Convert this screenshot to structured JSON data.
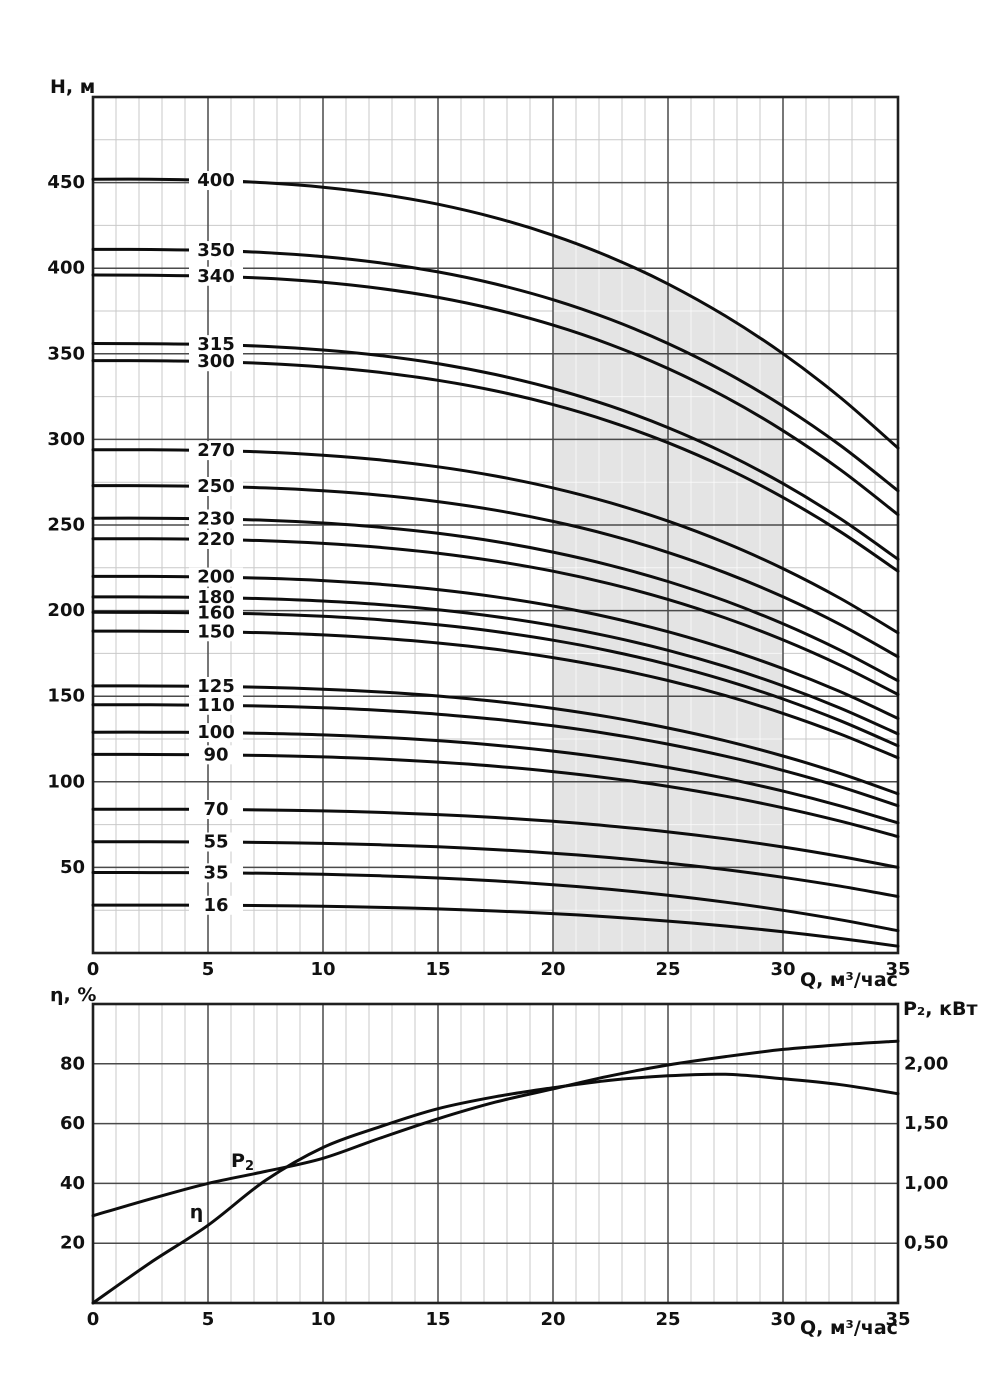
{
  "figure": {
    "background": "#ffffff",
    "description": "Submersible pump performance curves: head H vs flow Q for 21 head ratings (top), efficiency and shaft power vs flow (bottom)"
  },
  "style": {
    "curve_color": "#0d0d0d",
    "major_grid_color": "#4a4a4a",
    "minor_grid_color": "#c9c9c9",
    "border_color": "#1f1f1f",
    "shading_color": "#e4e4e4",
    "text_color": "#111111"
  },
  "chart_data": [
    {
      "type": "line",
      "id": "head-flow-curves",
      "ylabel": "Н, м",
      "xlabel": "Q, м³/час",
      "xlim": [
        0,
        35
      ],
      "ylim": [
        0,
        500
      ],
      "x_ticks": [
        0,
        5,
        10,
        15,
        20,
        25,
        30,
        35
      ],
      "y_ticks": [
        50,
        100,
        150,
        200,
        250,
        300,
        350,
        400,
        450
      ],
      "grid": "major dark every 5 (x) / 50 (y); minor light every 1 (x) / 25 (y)",
      "legend_position": "inline numeric labels on curves near Q = 5",
      "label_band_q": 5.3,
      "shaded_region": {
        "q_start": 20,
        "q_end": 30,
        "note": "recommended duty range, bounded above by the top curve, below by H = 0"
      },
      "curve_shape": {
        "model": "H(Q) = H0 - (H0 - H35) * (Q/35)^2.8"
      },
      "series": [
        {
          "label": "400",
          "H0": 452,
          "H35": 295
        },
        {
          "label": "350",
          "H0": 411,
          "H35": 270
        },
        {
          "label": "340",
          "H0": 396,
          "H35": 256
        },
        {
          "label": "315",
          "H0": 356,
          "H35": 230
        },
        {
          "label": "300",
          "H0": 346,
          "H35": 223
        },
        {
          "label": "270",
          "H0": 294,
          "H35": 187
        },
        {
          "label": "250",
          "H0": 273,
          "H35": 173
        },
        {
          "label": "230",
          "H0": 254,
          "H35": 159
        },
        {
          "label": "220",
          "H0": 242,
          "H35": 151
        },
        {
          "label": "200",
          "H0": 220,
          "H35": 137
        },
        {
          "label": "180",
          "H0": 208,
          "H35": 128
        },
        {
          "label": "160",
          "H0": 199,
          "H35": 121
        },
        {
          "label": "150",
          "H0": 188,
          "H35": 114
        },
        {
          "label": "125",
          "H0": 156,
          "H35": 93
        },
        {
          "label": "110",
          "H0": 145,
          "H35": 86
        },
        {
          "label": "100",
          "H0": 129,
          "H35": 76
        },
        {
          "label": "90",
          "H0": 116,
          "H35": 68
        },
        {
          "label": "70",
          "H0": 84,
          "H35": 50
        },
        {
          "label": "55",
          "H0": 65,
          "H35": 33
        },
        {
          "label": "35",
          "H0": 47,
          "H35": 13
        },
        {
          "label": "16",
          "H0": 28,
          "H35": 4
        }
      ]
    },
    {
      "type": "line",
      "id": "efficiency-and-power",
      "ylabel_left": "η, %",
      "ylabel_right": "P₂, кВт",
      "xlabel": "Q, м³/час",
      "xlim": [
        0,
        35
      ],
      "ylim_left": [
        0,
        100
      ],
      "ylim_right": [
        0,
        2.5
      ],
      "x_ticks": [
        0,
        5,
        10,
        15,
        20,
        25,
        30,
        35
      ],
      "y_ticks_left": [
        20,
        40,
        60,
        80
      ],
      "y_ticks_right": [
        {
          "value": 0.5,
          "label": "0,50"
        },
        {
          "value": 1.0,
          "label": "1,00"
        },
        {
          "value": 1.5,
          "label": "1,50"
        },
        {
          "value": 2.0,
          "label": "2,00"
        }
      ],
      "grid": "major dark every 5 (x) / 20 (left y); minor light every 1 (x)",
      "series": [
        {
          "name": "η",
          "axis": "left",
          "units": "%",
          "x": [
            0,
            2.5,
            5,
            7.5,
            10,
            12.5,
            15,
            17.5,
            20,
            22.5,
            25,
            27.5,
            30,
            32.5,
            35
          ],
          "y": [
            0,
            13.5,
            26,
            41,
            52,
            59,
            65,
            69,
            72,
            74.5,
            76,
            76.5,
            75,
            73,
            70
          ],
          "label_pos": {
            "q": 4.5,
            "value_left_scale": 30.5
          }
        },
        {
          "name": "P₂",
          "axis": "right",
          "units": "кВт",
          "x": [
            0,
            2.5,
            5,
            7.5,
            10,
            12.5,
            15,
            17.5,
            20,
            22.5,
            25,
            27.5,
            30,
            32.5,
            35
          ],
          "y": [
            0.73,
            0.87,
            1.0,
            1.1,
            1.21,
            1.38,
            1.54,
            1.68,
            1.79,
            1.9,
            1.99,
            2.06,
            2.12,
            2.16,
            2.19
          ],
          "label_pos": {
            "q": 6.5,
            "value_left_scale": 47.5
          }
        }
      ]
    }
  ]
}
